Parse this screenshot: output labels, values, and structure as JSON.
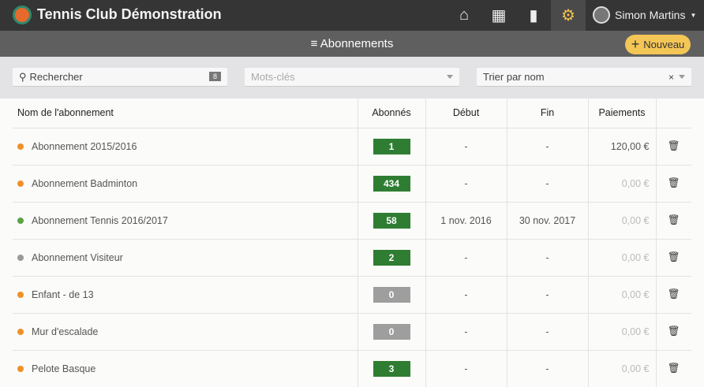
{
  "app": {
    "title": "Tennis Club Démonstration",
    "user": "Simon Martins"
  },
  "nav": [
    {
      "icon": "home-icon"
    },
    {
      "icon": "calendar-icon"
    },
    {
      "icon": "chat-icon"
    },
    {
      "icon": "gear-icon",
      "active": true
    }
  ],
  "subheader": {
    "title": "Abonnements",
    "new_label": "Nouveau"
  },
  "filters": {
    "search_placeholder": "Rechercher",
    "search_count": "8",
    "keywords_placeholder": "Mots-clés",
    "sort_value": "Trier par nom"
  },
  "table": {
    "headers": [
      "Nom de l'abonnement",
      "Abonnés",
      "Début",
      "Fin",
      "Paiements"
    ],
    "rows": [
      {
        "name": "Abonnement 2015/2016",
        "status": "#f0902a",
        "subs": "1",
        "start": "-",
        "end": "-",
        "payments": "120,00 €",
        "paid": true
      },
      {
        "name": "Abonnement Badminton",
        "status": "#f0902a",
        "subs": "434",
        "start": "-",
        "end": "-",
        "payments": "0,00 €"
      },
      {
        "name": "Abonnement Tennis 2016/2017",
        "status": "#5aa346",
        "subs": "58",
        "start": "1 nov. 2016",
        "end": "30 nov. 2017",
        "payments": "0,00 €"
      },
      {
        "name": "Abonnement Visiteur",
        "status": "#9a9a9a",
        "subs": "2",
        "start": "-",
        "end": "-",
        "payments": "0,00 €"
      },
      {
        "name": "Enfant - de 13",
        "status": "#f0902a",
        "subs": "0",
        "start": "-",
        "end": "-",
        "payments": "0,00 €"
      },
      {
        "name": "Mur d'escalade",
        "status": "#f0902a",
        "subs": "0",
        "start": "-",
        "end": "-",
        "payments": "0,00 €"
      },
      {
        "name": "Pelote Basque",
        "status": "#f0902a",
        "subs": "3",
        "start": "-",
        "end": "-",
        "payments": "0,00 €"
      }
    ]
  },
  "colors": {
    "badge_active": "#2f7d32",
    "badge_zero": "#9e9e9e",
    "accent": "#f3c656"
  }
}
